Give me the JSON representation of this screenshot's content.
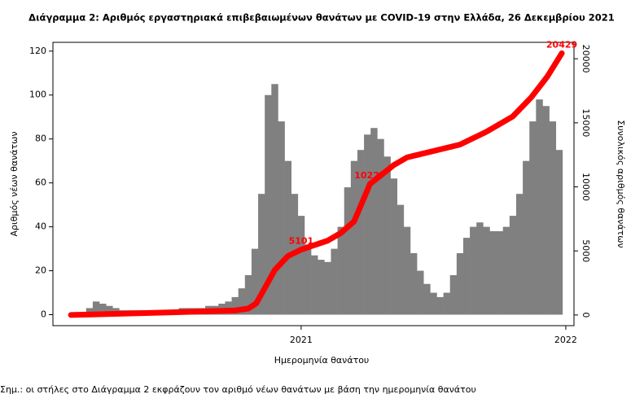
{
  "chart_data": {
    "type": "bar",
    "title": "Διάγραμμα 2: Αριθμός εργαστηριακά επιβεβαιωμένων θανάτων με COVID-19 στην Ελλάδα, 26 Δεκεμβρίου 2021",
    "xlabel": "Ημερομηνία θανάτου",
    "ylabel": "Αριθμός νέων θανάτων",
    "y2label": "Συνολικός αριθμός θανάτων",
    "note": "Σημ.: οι στήλες στο Διάγραμμα 2 εκφράζουν τον αριθμό νέων θανάτων με βάση την ημερομηνία θανάτου",
    "xlim": [
      2020.062,
      2022.031
    ],
    "xticks": [
      2021,
      2022
    ],
    "ylim": [
      -5,
      124
    ],
    "yticks": [
      0,
      20,
      40,
      60,
      80,
      100,
      120
    ],
    "y2lim": [
      -833,
      21282
    ],
    "y2ticks": [
      0,
      5000,
      10000,
      15000,
      20000
    ],
    "series": [
      {
        "type": "bar",
        "color": "#808080",
        "x": [
          2020.2,
          2020.225,
          2020.25,
          2020.275,
          2020.3,
          2020.325,
          2020.35,
          2020.375,
          2020.4,
          2020.425,
          2020.45,
          2020.475,
          2020.5,
          2020.525,
          2020.55,
          2020.575,
          2020.6,
          2020.625,
          2020.65,
          2020.675,
          2020.7,
          2020.725,
          2020.75,
          2020.775,
          2020.8,
          2020.825,
          2020.85,
          2020.875,
          2020.9,
          2020.925,
          2020.95,
          2020.975,
          2021.0,
          2021.025,
          2021.05,
          2021.075,
          2021.1,
          2021.125,
          2021.15,
          2021.175,
          2021.2,
          2021.225,
          2021.25,
          2021.275,
          2021.3,
          2021.325,
          2021.35,
          2021.375,
          2021.4,
          2021.425,
          2021.45,
          2021.475,
          2021.5,
          2021.525,
          2021.55,
          2021.575,
          2021.6,
          2021.625,
          2021.65,
          2021.675,
          2021.7,
          2021.725,
          2021.75,
          2021.775,
          2021.8,
          2021.825,
          2021.85,
          2021.875,
          2021.9,
          2021.925,
          2021.95,
          2021.975
        ],
        "values": [
          3,
          6,
          5,
          4,
          3,
          2,
          2,
          2,
          2,
          2,
          2,
          2,
          2,
          2,
          3,
          3,
          3,
          3,
          4,
          4,
          5,
          6,
          8,
          12,
          18,
          30,
          55,
          100,
          105,
          88,
          70,
          55,
          45,
          32,
          27,
          25,
          24,
          30,
          40,
          58,
          70,
          75,
          82,
          85,
          80,
          72,
          62,
          50,
          40,
          28,
          20,
          14,
          10,
          8,
          10,
          18,
          28,
          35,
          40,
          42,
          40,
          38,
          38,
          40,
          45,
          55,
          70,
          88,
          98,
          95,
          88,
          75
        ]
      },
      {
        "type": "line",
        "axis": "y2",
        "color": "#ff0000",
        "x": [
          2020.13,
          2020.5,
          2020.75,
          2020.8,
          2020.83,
          2020.86,
          2020.9,
          2020.95,
          2021.0,
          2021.1,
          2021.15,
          2021.2,
          2021.26,
          2021.35,
          2021.4,
          2021.5,
          2021.6,
          2021.7,
          2021.8,
          2021.87,
          2021.93,
          2021.985
        ],
        "values": [
          0,
          200,
          350,
          500,
          900,
          2000,
          3500,
          4600,
          5101,
          5800,
          6400,
          7300,
          10227,
          11700,
          12300,
          12800,
          13300,
          14300,
          15500,
          17000,
          18600,
          20429
        ]
      }
    ],
    "annotations": [
      {
        "x": 2021.0,
        "y": 5101
      },
      {
        "x": 2021.26,
        "y": 10227
      },
      {
        "x": 2021.985,
        "y": 20429
      }
    ]
  }
}
